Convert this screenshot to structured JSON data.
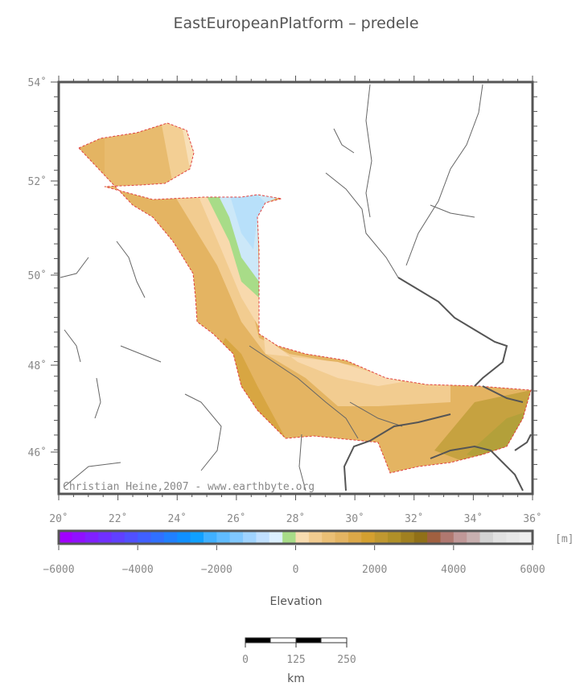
{
  "title": "EastEuropeanPlatform – predele",
  "map": {
    "lat_labels": [
      "54˚",
      "52˚",
      "50˚",
      "48˚",
      "46˚"
    ],
    "lon_labels": [
      "20˚",
      "22˚",
      "24˚",
      "26˚",
      "28˚",
      "30˚",
      "32˚",
      "34˚",
      "36˚"
    ],
    "credit": "Christian Heine,2007 - www.earthbyte.org"
  },
  "colorbar": {
    "tick_labels": [
      "−6000",
      "−4000",
      "−2000",
      "0",
      "2000",
      "4000",
      "6000"
    ],
    "unit": "[m]",
    "label": "Elevation"
  },
  "scalebar": {
    "tick_labels": [
      "0",
      "125",
      "250"
    ],
    "unit": "km"
  }
}
